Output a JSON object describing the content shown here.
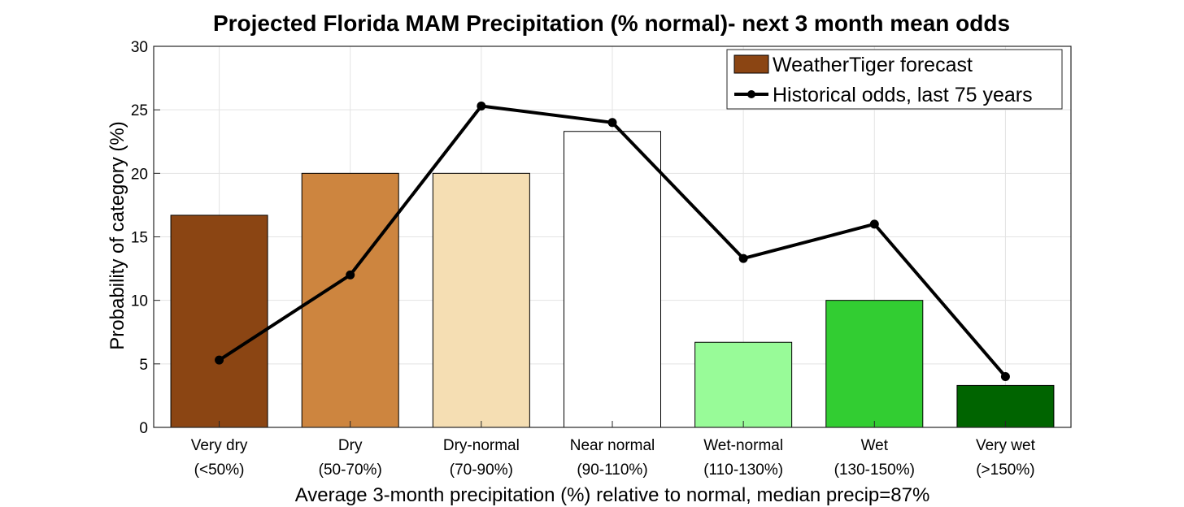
{
  "chart_data": {
    "type": "bar",
    "title": "Projected Florida MAM Precipitation (% normal)- next 3 month mean odds",
    "xlabel": "Average 3-month precipitation (%) relative to normal, median precip=87%",
    "ylabel": "Probability of category (%)",
    "ylim": [
      0,
      30
    ],
    "yticks": [
      "0",
      "5",
      "10",
      "15",
      "20",
      "25",
      "30"
    ],
    "grid": true,
    "legend_position": "top-right",
    "categories": [
      {
        "name": "Very dry",
        "range": "(<50%)"
      },
      {
        "name": "Dry",
        "range": "(50-70%)"
      },
      {
        "name": "Dry-normal",
        "range": "(70-90%)"
      },
      {
        "name": "Near normal",
        "range": "(90-110%)"
      },
      {
        "name": "Wet-normal",
        "range": "(110-130%)"
      },
      {
        "name": "Wet",
        "range": "(130-150%)"
      },
      {
        "name": "Very wet",
        "range": "(>150%)"
      }
    ],
    "series": [
      {
        "name": "WeatherTiger forecast",
        "type": "bar",
        "values": [
          16.7,
          20.0,
          20.0,
          23.3,
          6.7,
          10.0,
          3.3
        ],
        "colors": [
          "#8b4513",
          "#cd853f",
          "#f5deb3",
          "#ffffff",
          "#98fb98",
          "#32cd32",
          "#006400"
        ]
      },
      {
        "name": "Historical odds, last 75 years",
        "type": "line",
        "values": [
          5.3,
          12.0,
          25.3,
          24.0,
          13.3,
          16.0,
          4.0
        ],
        "color": "#000000"
      }
    ],
    "legend": [
      "WeatherTiger forecast",
      "Historical odds, last 75 years"
    ],
    "legend_swatch_color": "#8b4513"
  }
}
